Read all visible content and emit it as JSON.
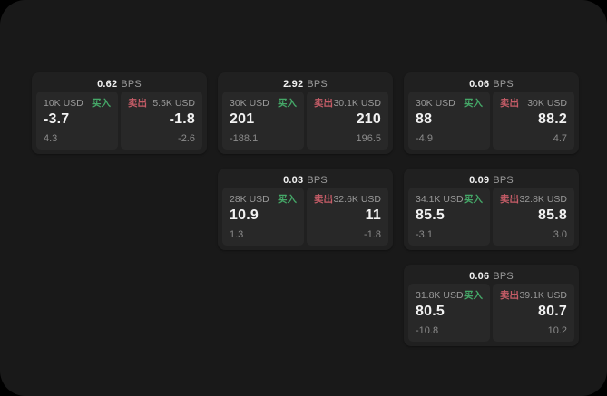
{
  "labels": {
    "bps": "BPS",
    "buy": "买入",
    "sell": "卖出"
  },
  "colors": {
    "outer_bg": "#000000",
    "window_bg": "#191919",
    "card_bg": "#202020",
    "panel_bg": "#282828",
    "text_primary": "#f2f2f2",
    "text_secondary": "#9a9a9a",
    "text_muted": "#8b8b8b",
    "buy_green": "#45a868",
    "sell_red": "#c75d68"
  },
  "cards": [
    {
      "row": 1,
      "col": 1,
      "bps": "0.62",
      "buy": {
        "amount": "10K USD",
        "value": "-3.7",
        "delta": "4.3"
      },
      "sell": {
        "amount": "5.5K USD",
        "value": "-1.8",
        "delta": "-2.6"
      }
    },
    {
      "row": 1,
      "col": 2,
      "bps": "2.92",
      "buy": {
        "amount": "30K USD",
        "value": "201",
        "delta": "-188.1"
      },
      "sell": {
        "amount": "30.1K USD",
        "value": "210",
        "delta": "196.5"
      }
    },
    {
      "row": 1,
      "col": 3,
      "bps": "0.06",
      "buy": {
        "amount": "30K USD",
        "value": "88",
        "delta": "-4.9"
      },
      "sell": {
        "amount": "30K USD",
        "value": "88.2",
        "delta": "4.7"
      }
    },
    {
      "row": 2,
      "col": 2,
      "bps": "0.03",
      "buy": {
        "amount": "28K USD",
        "value": "10.9",
        "delta": "1.3"
      },
      "sell": {
        "amount": "32.6K USD",
        "value": "11",
        "delta": "-1.8"
      }
    },
    {
      "row": 2,
      "col": 3,
      "bps": "0.09",
      "buy": {
        "amount": "34.1K USD",
        "value": "85.5",
        "delta": "-3.1"
      },
      "sell": {
        "amount": "32.8K USD",
        "value": "85.8",
        "delta": "3.0"
      }
    },
    {
      "row": 3,
      "col": 3,
      "bps": "0.06",
      "buy": {
        "amount": "31.8K USD",
        "value": "80.5",
        "delta": "-10.8"
      },
      "sell": {
        "amount": "39.1K USD",
        "value": "80.7",
        "delta": "10.2"
      }
    }
  ]
}
